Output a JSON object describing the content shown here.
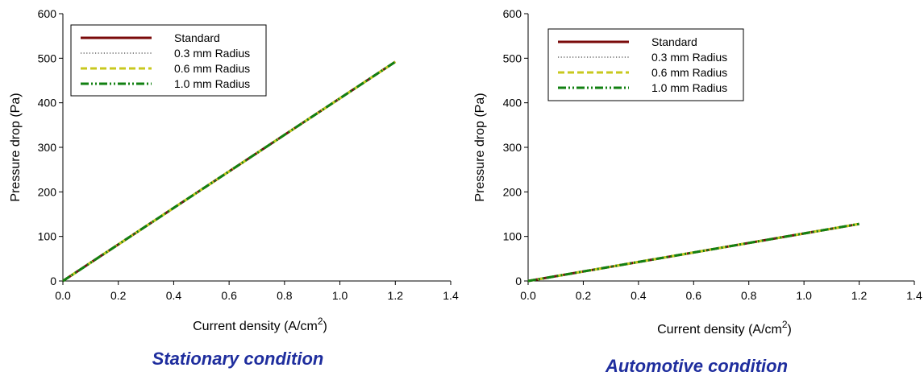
{
  "chart_data": [
    {
      "type": "line",
      "caption": "Stationary condition",
      "xlabel": "Current density (A/cm",
      "xlabel_sup": "2",
      "xlabel_close": ")",
      "ylabel": "Pressure drop (Pa)",
      "xlim": [
        0.0,
        1.4
      ],
      "ylim": [
        0,
        600
      ],
      "xticks": [
        "0.0",
        "0.2",
        "0.4",
        "0.6",
        "0.8",
        "1.0",
        "1.2",
        "1.4"
      ],
      "yticks": [
        "0",
        "100",
        "200",
        "300",
        "400",
        "500",
        "600"
      ],
      "legend_position": "top-left",
      "series": [
        {
          "name": "Standard",
          "x": [
            0,
            1.2
          ],
          "y": [
            0,
            492
          ]
        },
        {
          "name": "0.3 mm Radius",
          "x": [
            0,
            1.2
          ],
          "y": [
            0,
            492
          ]
        },
        {
          "name": "0.6 mm Radius",
          "x": [
            0,
            1.2
          ],
          "y": [
            0,
            492
          ]
        },
        {
          "name": "1.0 mm Radius",
          "x": [
            0,
            1.2
          ],
          "y": [
            0,
            492
          ]
        }
      ]
    },
    {
      "type": "line",
      "caption": "Automotive condition",
      "xlabel": "Current density (A/cm",
      "xlabel_sup": "2",
      "xlabel_close": ")",
      "ylabel": "Pressure drop (Pa)",
      "xlim": [
        0.0,
        1.4
      ],
      "ylim": [
        0,
        600
      ],
      "xticks": [
        "0.0",
        "0.2",
        "0.4",
        "0.6",
        "0.8",
        "1.0",
        "1.2",
        "1.4"
      ],
      "yticks": [
        "0",
        "100",
        "200",
        "300",
        "400",
        "500",
        "600"
      ],
      "legend_position": "top-left",
      "series": [
        {
          "name": "Standard",
          "x": [
            0,
            1.2
          ],
          "y": [
            0,
            128
          ]
        },
        {
          "name": "0.3 mm Radius",
          "x": [
            0,
            1.2
          ],
          "y": [
            0,
            128
          ]
        },
        {
          "name": "0.6 mm Radius",
          "x": [
            0,
            1.2
          ],
          "y": [
            0,
            128
          ]
        },
        {
          "name": "1.0 mm Radius",
          "x": [
            0,
            1.2
          ],
          "y": [
            0,
            128
          ]
        }
      ]
    }
  ],
  "styles": {
    "caption_color": "#1f2e9e",
    "series_colors": [
      "#7a0a0a",
      "#444444",
      "#c8c81e",
      "#128012"
    ]
  }
}
